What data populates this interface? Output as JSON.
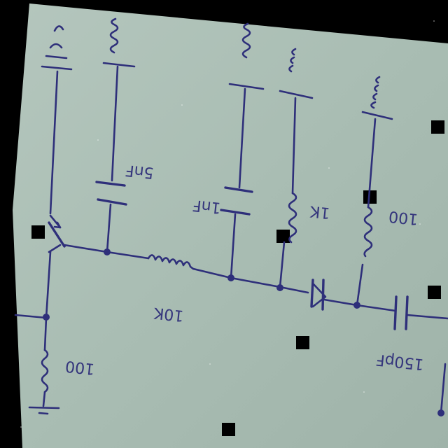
{
  "colors": {
    "background": "#000000",
    "paper": "#a9bdb3",
    "ink": "#2e2f7a"
  },
  "labels": {
    "cap_5nf": "5nF",
    "cap_1nf": "1nF",
    "res_10k": "10K",
    "res_1k": "1K",
    "res_100_right": "100",
    "res_100_left": "100",
    "cap_150pf": "150pF"
  }
}
